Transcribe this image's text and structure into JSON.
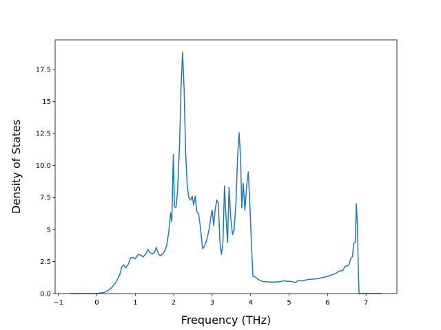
{
  "chart_data": {
    "type": "line",
    "xlabel": "Frequency (THz)",
    "ylabel": "Density of States",
    "x": [
      -0.68,
      0.0,
      0.2,
      0.3,
      0.4,
      0.5,
      0.6,
      0.65,
      0.7,
      0.75,
      0.82,
      0.88,
      0.95,
      1.0,
      1.08,
      1.15,
      1.2,
      1.28,
      1.33,
      1.38,
      1.45,
      1.5,
      1.55,
      1.6,
      1.65,
      1.72,
      1.78,
      1.82,
      1.87,
      1.92,
      1.95,
      1.99,
      2.02,
      2.06,
      2.1,
      2.15,
      2.19,
      2.23,
      2.27,
      2.31,
      2.35,
      2.39,
      2.44,
      2.48,
      2.52,
      2.56,
      2.6,
      2.65,
      2.7,
      2.75,
      2.8,
      2.86,
      2.92,
      2.97,
      3.0,
      3.04,
      3.08,
      3.12,
      3.16,
      3.2,
      3.24,
      3.28,
      3.32,
      3.36,
      3.4,
      3.44,
      3.48,
      3.53,
      3.57,
      3.62,
      3.66,
      3.7,
      3.74,
      3.77,
      3.81,
      3.85,
      3.9,
      3.94,
      3.98,
      4.02,
      4.06,
      4.12,
      4.2,
      4.3,
      4.5,
      4.7,
      4.8,
      4.88,
      4.95,
      5.05,
      5.12,
      5.17,
      5.22,
      5.35,
      5.5,
      5.7,
      5.8,
      5.95,
      6.05,
      6.2,
      6.3,
      6.4,
      6.45,
      6.55,
      6.6,
      6.65,
      6.68,
      6.72,
      6.75,
      6.78,
      6.8,
      6.82,
      7.4
    ],
    "series": [
      {
        "color": "#1f77b4",
        "values": [
          0,
          0,
          0.1,
          0.25,
          0.5,
          0.9,
          1.5,
          2.1,
          2.25,
          2.0,
          2.3,
          2.8,
          2.8,
          2.7,
          3.05,
          3.0,
          2.85,
          3.1,
          3.45,
          3.2,
          3.1,
          3.2,
          3.6,
          3.1,
          2.95,
          3.1,
          3.4,
          3.8,
          4.8,
          6.3,
          5.6,
          10.85,
          6.8,
          6.7,
          8.0,
          11.5,
          16.0,
          18.85,
          16.0,
          11.0,
          8.5,
          7.5,
          7.3,
          7.6,
          6.9,
          7.6,
          6.4,
          6.2,
          5.0,
          3.5,
          3.7,
          4.2,
          5.0,
          6.1,
          6.5,
          5.3,
          6.6,
          7.3,
          7.0,
          4.1,
          3.05,
          4.0,
          8.4,
          6.0,
          4.0,
          8.3,
          6.0,
          4.6,
          5.0,
          7.2,
          10.6,
          12.55,
          10.5,
          6.7,
          8.6,
          6.5,
          8.5,
          9.5,
          7.0,
          4.0,
          1.35,
          1.3,
          1.1,
          0.95,
          0.9,
          0.9,
          0.95,
          1.0,
          0.95,
          0.95,
          0.9,
          0.85,
          1.0,
          1.0,
          1.1,
          1.15,
          1.2,
          1.3,
          1.4,
          1.55,
          1.75,
          1.8,
          2.1,
          2.2,
          2.7,
          2.9,
          3.9,
          4.0,
          7.0,
          5.0,
          2.0,
          0,
          0
        ]
      }
    ],
    "xlim": [
      -1.084,
      7.804
    ],
    "ylim": [
      0,
      19.8
    ],
    "xticks": [
      {
        "value": -1,
        "label": "−1"
      },
      0,
      1,
      2,
      3,
      4,
      5,
      6,
      7
    ],
    "yticks": [
      {
        "value": 0,
        "label": "0.0"
      },
      2.5,
      5.0,
      7.5,
      {
        "value": 10,
        "label": "10.0"
      },
      12.5,
      15.0,
      17.5
    ]
  }
}
